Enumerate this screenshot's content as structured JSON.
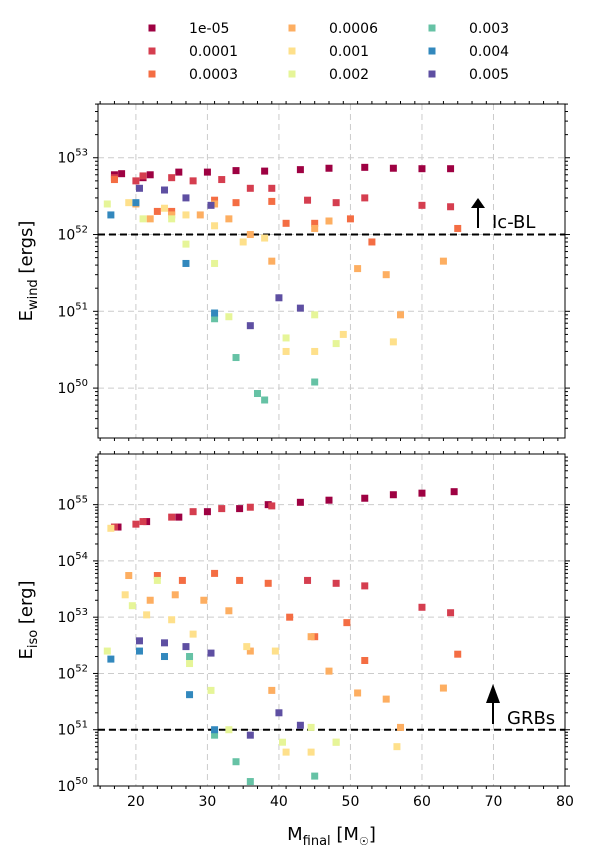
{
  "chart_data": [
    {
      "type": "scatter",
      "panel": "top",
      "ylabel_main": "E",
      "ylabel_sub": "wind",
      "ylabel_unit": "[ergs]",
      "yscale": "log",
      "ylim_exp": [
        49.35,
        53.7
      ],
      "y_ticks": [
        {
          "base": "10",
          "exp": "50"
        },
        {
          "base": "10",
          "exp": "51"
        },
        {
          "base": "10",
          "exp": "52"
        },
        {
          "base": "10",
          "exp": "53"
        }
      ],
      "threshold": {
        "value": 1e+52,
        "label": "Ic-BL"
      },
      "series": [
        {
          "name": "1e-05",
          "color": "#9e0142",
          "x": [
            17,
            18,
            21,
            22,
            26,
            30,
            34,
            38,
            43,
            47,
            52,
            56,
            60,
            64
          ],
          "y": [
            6e+52,
            6.2e+52,
            5.5e+52,
            6e+52,
            6.5e+52,
            6.5e+52,
            6.8e+52,
            6.7e+52,
            7e+52,
            7.3e+52,
            7.5e+52,
            7.3e+52,
            7.2e+52,
            7.2e+52
          ]
        },
        {
          "name": "0.0001",
          "color": "#d53e4f",
          "x": [
            17,
            20,
            21,
            25,
            28,
            32,
            36,
            39,
            44,
            48,
            52,
            60,
            64
          ],
          "y": [
            5.5e+52,
            5e+52,
            5.8e+52,
            5.5e+52,
            5e+52,
            5.2e+52,
            4e+52,
            4e+52,
            2.8e+52,
            2.6e+52,
            3e+52,
            2.4e+52,
            2.3e+52
          ]
        },
        {
          "name": "0.0003",
          "color": "#f46d43",
          "x": [
            17,
            23,
            25,
            31,
            34,
            39,
            41,
            45,
            50,
            53,
            65
          ],
          "y": [
            5.2e+52,
            2e+52,
            2e+52,
            2.8e+52,
            2.6e+52,
            2.7e+52,
            1.4e+52,
            1.4e+52,
            1.6e+52,
            8e+51,
            1.2e+52
          ]
        },
        {
          "name": "0.0006",
          "color": "#fdae61",
          "x": [
            20,
            22,
            25,
            29,
            31,
            33,
            36,
            39,
            45,
            47,
            51,
            55,
            57,
            63
          ],
          "y": [
            2.5e+52,
            1.6e+52,
            1.8e+52,
            1.8e+52,
            2.5e+52,
            1.6e+52,
            1e+52,
            4.5e+51,
            1.2e+52,
            1.5e+52,
            3.6e+51,
            3e+51,
            9e+50,
            4.5e+51
          ]
        },
        {
          "name": "0.001",
          "color": "#fee08b",
          "x": [
            19,
            24,
            27,
            31,
            35,
            38,
            41,
            45,
            49,
            56
          ],
          "y": [
            2.6e+52,
            2.2e+52,
            1.8e+52,
            1.3e+52,
            8e+51,
            9e+51,
            3e+50,
            3e+50,
            5e+50,
            4e+50
          ]
        },
        {
          "name": "0.002",
          "color": "#e6f598",
          "x": [
            16,
            21,
            25,
            27,
            31,
            33,
            41,
            45,
            48
          ],
          "y": [
            2.5e+52,
            1.6e+52,
            1.6e+52,
            7.5e+51,
            4.2e+51,
            8.5e+50,
            4.5e+50,
            9e+50,
            3.8e+50
          ]
        },
        {
          "name": "0.003",
          "color": "#66c2a5",
          "x": [
            31,
            34,
            37,
            38,
            45
          ],
          "y": [
            8e+50,
            2.5e+50,
            8.5e+49,
            7e+49,
            1.2e+50
          ]
        },
        {
          "name": "0.004",
          "color": "#3288bd",
          "x": [
            16.5,
            20,
            27,
            31
          ],
          "y": [
            1.8e+52,
            2.6e+52,
            4.2e+51,
            9.5e+50
          ]
        },
        {
          "name": "0.005",
          "color": "#5e4fa2",
          "x": [
            20.5,
            24,
            27,
            30.5,
            36,
            40,
            43
          ],
          "y": [
            4e+52,
            3.8e+52,
            3e+52,
            2.4e+52,
            6.5e+50,
            1.5e+51,
            1.1e+51
          ]
        }
      ]
    },
    {
      "type": "scatter",
      "panel": "bottom",
      "ylabel_main": "E",
      "ylabel_sub": "iso",
      "ylabel_unit": "[erg]",
      "yscale": "log",
      "ylim_exp": [
        50,
        55.9
      ],
      "y_ticks": [
        {
          "base": "10",
          "exp": "50"
        },
        {
          "base": "10",
          "exp": "51"
        },
        {
          "base": "10",
          "exp": "52"
        },
        {
          "base": "10",
          "exp": "53"
        },
        {
          "base": "10",
          "exp": "54"
        },
        {
          "base": "10",
          "exp": "55"
        }
      ],
      "threshold": {
        "value": 1e+51,
        "label": "GRBs"
      },
      "xlabel_main": "M",
      "xlabel_sub": "final",
      "xlabel_unit": "[M",
      "xlabel_sun": "☉",
      "xlabel_close": "]",
      "xlim": [
        14.7,
        80
      ],
      "x_ticks": [
        "20",
        "30",
        "40",
        "50",
        "60",
        "70",
        "80"
      ],
      "series": [
        {
          "name": "1e-05",
          "color": "#9e0142",
          "x": [
            17.5,
            21.5,
            26,
            30,
            34.5,
            38.5,
            43,
            47,
            52,
            56,
            60,
            64.5
          ],
          "y": [
            4e+54,
            5e+54,
            6e+54,
            7.5e+54,
            8.5e+54,
            1e+55,
            1.1e+55,
            1.2e+55,
            1.3e+55,
            1.5e+55,
            1.6e+55,
            1.7e+55
          ]
        },
        {
          "name": "0.0001",
          "color": "#d53e4f",
          "x": [
            17,
            20,
            21,
            25,
            28,
            32,
            36,
            39,
            44,
            48,
            52,
            60,
            64
          ],
          "y": [
            4e+54,
            4.5e+54,
            5e+54,
            6e+54,
            7.5e+54,
            8.5e+54,
            9e+54,
            9.5e+54,
            4.5e+53,
            4e+53,
            3.6e+53,
            1.5e+53,
            1.2e+53
          ]
        },
        {
          "name": "0.0003",
          "color": "#f46d43",
          "x": [
            23,
            26.5,
            31,
            34.5,
            38.5,
            41.5,
            45,
            49.5,
            52,
            65
          ],
          "y": [
            5.5e+53,
            4.5e+53,
            6e+53,
            4.5e+53,
            4e+53,
            1e+53,
            4.5e+52,
            8e+52,
            1.7e+52,
            2.2e+52
          ]
        },
        {
          "name": "0.0006",
          "color": "#fdae61",
          "x": [
            19,
            22,
            25.5,
            29.5,
            33,
            36,
            39,
            44.5,
            47,
            51,
            55,
            57,
            63
          ],
          "y": [
            5.5e+53,
            2e+53,
            2.5e+53,
            2e+53,
            1.3e+53,
            2.5e+52,
            5e+51,
            4.5e+52,
            1.1e+52,
            4.5e+51,
            3.5e+51,
            1.1e+51,
            5.5e+51
          ]
        },
        {
          "name": "0.001",
          "color": "#fee08b",
          "x": [
            16.5,
            18.5,
            21.5,
            25,
            28,
            35.5,
            39.5,
            41,
            44.5,
            48,
            56.5
          ],
          "y": [
            3.8e+54,
            2.5e+53,
            1.1e+53,
            9e+52,
            5e+52,
            3e+52,
            2.5e+52,
            4e+50,
            4e+50,
            6e+50,
            5e+50
          ]
        },
        {
          "name": "0.002",
          "color": "#e6f598",
          "x": [
            16,
            19.5,
            23,
            27.5,
            30.5,
            33,
            40.5,
            44.5,
            48
          ],
          "y": [
            2.5e+52,
            1.6e+53,
            4.5e+53,
            1.5e+52,
            5e+51,
            1e+51,
            6e+50,
            1.1e+51,
            6e+50
          ]
        },
        {
          "name": "0.003",
          "color": "#66c2a5",
          "x": [
            27.5,
            31,
            34,
            36,
            45
          ],
          "y": [
            2e+52,
            8e+50,
            2.7e+50,
            1.2e+50,
            1.5e+50
          ]
        },
        {
          "name": "0.004",
          "color": "#3288bd",
          "x": [
            16.5,
            20.5,
            24,
            27.5,
            31
          ],
          "y": [
            1.8e+52,
            2.5e+52,
            2e+52,
            4.2e+51,
            1e+51
          ]
        },
        {
          "name": "0.005",
          "color": "#5e4fa2",
          "x": [
            20.5,
            24,
            27,
            30.5,
            36,
            40,
            43
          ],
          "y": [
            3.8e+52,
            3.5e+52,
            3e+52,
            2.3e+52,
            8e+50,
            2e+51,
            1.2e+51
          ]
        }
      ]
    }
  ]
}
